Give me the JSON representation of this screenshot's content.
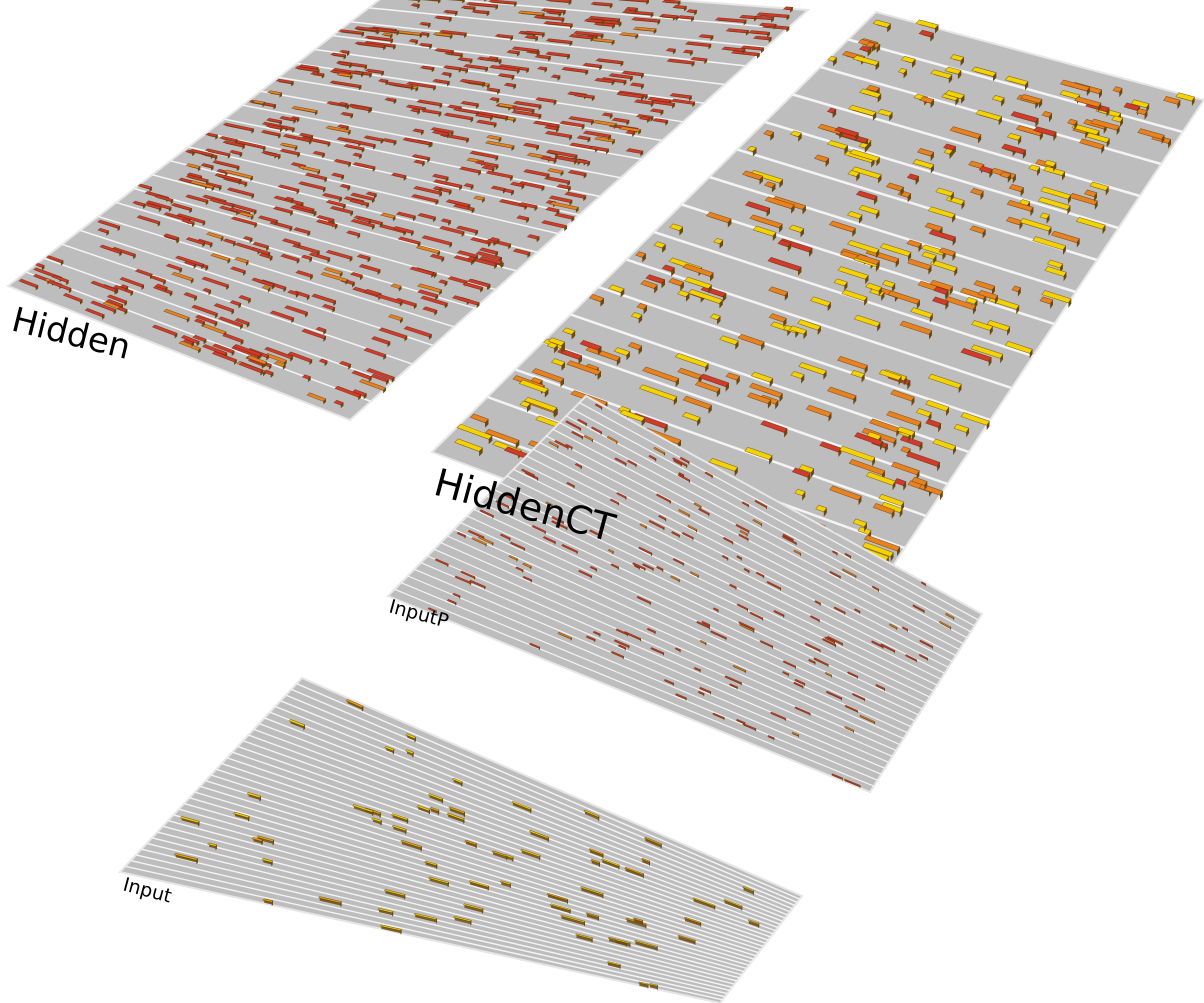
{
  "layers": [
    {
      "id": "hidden",
      "label": "Hidden",
      "units_active_color": "#d23a2a"
    },
    {
      "id": "hiddenct",
      "label": "HiddenCT",
      "units_active_color": "#f5d300"
    },
    {
      "id": "inputp",
      "label": "InputP",
      "units_active_color": "#d84a3a"
    },
    {
      "id": "input",
      "label": "Input",
      "units_active_color": "#f2b500"
    }
  ],
  "colors": {
    "plane": "#bdbdbd",
    "plane_edge": "#e6e6e6",
    "divider": "#f4f4f4",
    "red_unit": "#d23a2a",
    "orange_unit": "#e8821e",
    "yellow_unit": "#f5d300",
    "unit_shadow": "#6b4a10"
  }
}
